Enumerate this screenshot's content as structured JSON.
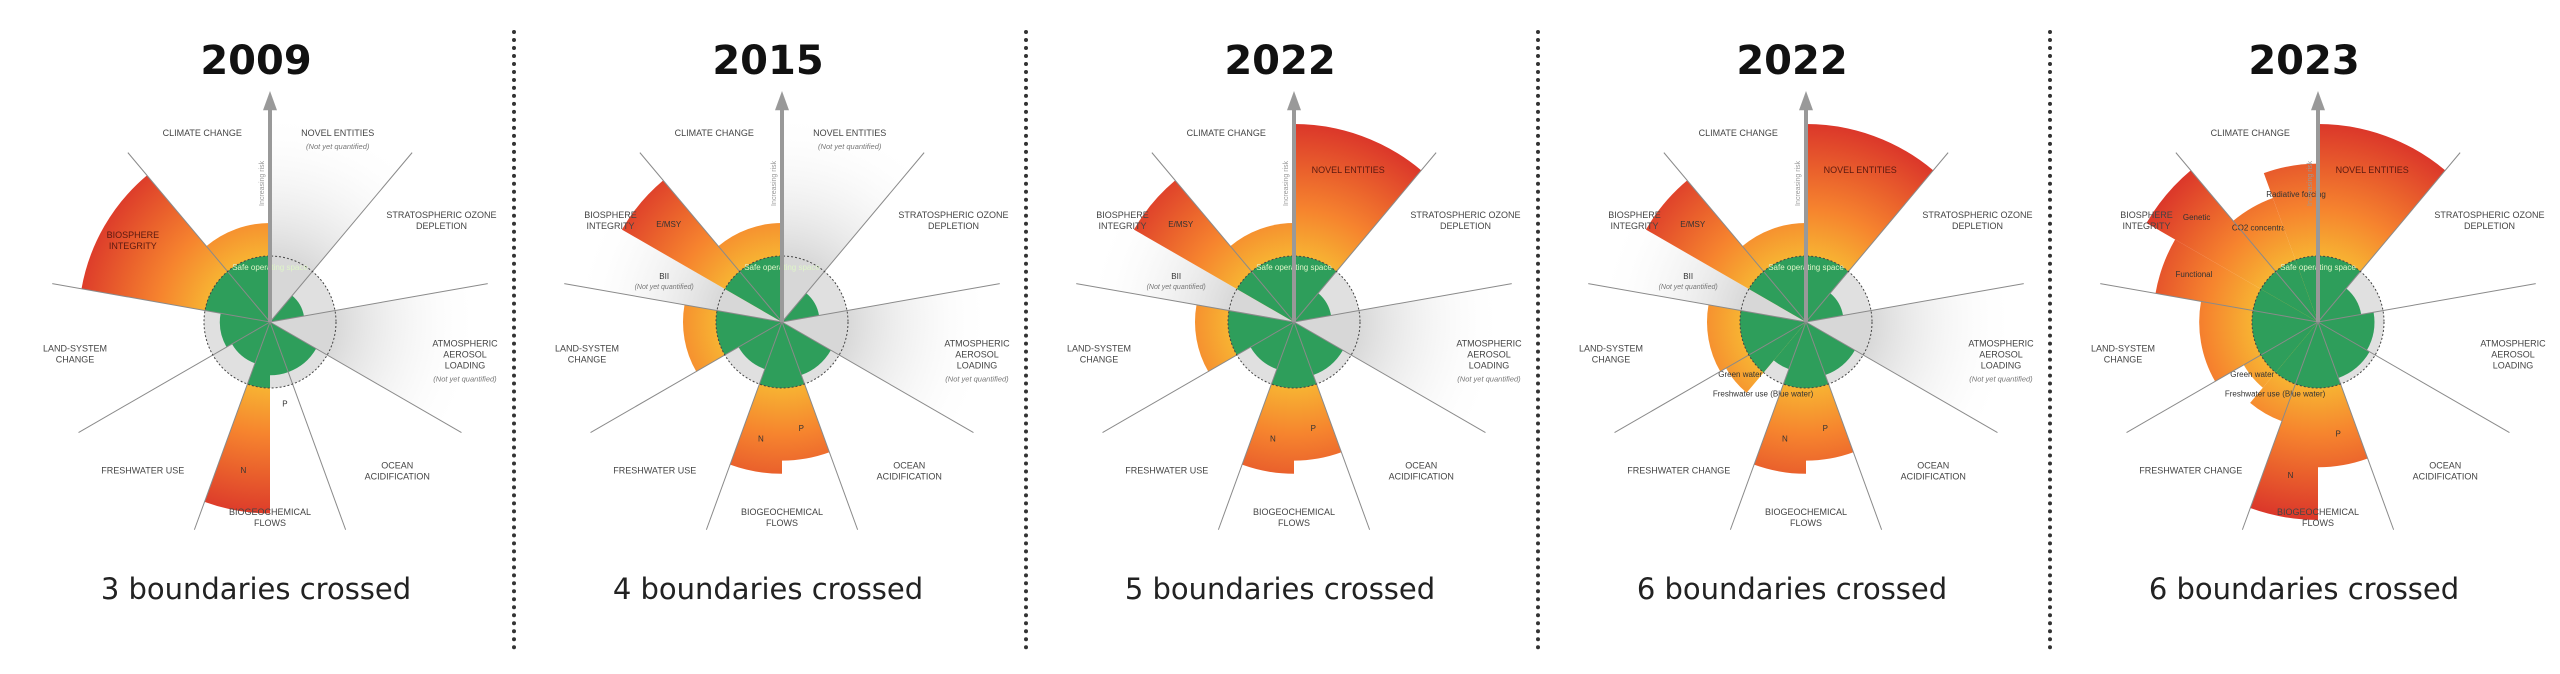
{
  "axis_label": "Increasing risk",
  "safe_space_label": "Safe operating space",
  "colors": {
    "safe": "#2e9e5b",
    "zone_low": "#f7b733",
    "zone_mid": "#f6842e",
    "zone_high": "#d9312a",
    "unquantified": "#d7d7d7"
  },
  "panels": [
    {
      "year": "2009",
      "caption": "3 boundaries crossed",
      "boundaries": [
        {
          "label": [
            "NOVEL ENTITIES"
          ],
          "note": "(Not yet quantified)",
          "segments": [
            {
              "label": "",
              "level": null
            }
          ]
        },
        {
          "label": [
            "STRATOSPHERIC OZONE",
            "DEPLETION"
          ],
          "note": "",
          "segments": [
            {
              "label": "",
              "level": 0.55
            }
          ]
        },
        {
          "label": [
            "ATMOSPHERIC",
            "AEROSOL",
            "LOADING"
          ],
          "note": "(Not yet quantified)",
          "segments": [
            {
              "label": "",
              "level": null
            }
          ]
        },
        {
          "label": [
            "OCEAN",
            "ACIDIFICATION"
          ],
          "note": "",
          "segments": [
            {
              "label": "",
              "level": 0.85
            }
          ]
        },
        {
          "label": [
            "BIOGEOCHEMICAL",
            "FLOWS"
          ],
          "note": "",
          "segments": [
            {
              "label": "P",
              "level": 0.85
            },
            {
              "label": "N",
              "level": 2.9
            }
          ]
        },
        {
          "label": [
            "FRESHWATER USE"
          ],
          "note": "",
          "segments": [
            {
              "label": "",
              "level": 0.7
            }
          ]
        },
        {
          "label": [
            "LAND-SYSTEM",
            "CHANGE"
          ],
          "note": "",
          "segments": [
            {
              "label": "",
              "level": 0.8
            }
          ]
        },
        {
          "label": [
            "BIOSPHERE",
            "INTEGRITY"
          ],
          "note": "",
          "inner_label": true,
          "segments": [
            {
              "label": "",
              "level": 2.9
            }
          ]
        },
        {
          "label": [
            "CLIMATE CHANGE"
          ],
          "note": "",
          "segments": [
            {
              "label": "",
              "level": 1.5
            }
          ]
        }
      ]
    },
    {
      "year": "2015",
      "caption": "4 boundaries crossed",
      "boundaries": [
        {
          "label": [
            "NOVEL ENTITIES"
          ],
          "note": "(Not yet quantified)",
          "segments": [
            {
              "label": "",
              "level": null
            }
          ]
        },
        {
          "label": [
            "STRATOSPHERIC OZONE",
            "DEPLETION"
          ],
          "note": "",
          "segments": [
            {
              "label": "",
              "level": 0.6
            }
          ]
        },
        {
          "label": [
            "ATMOSPHERIC",
            "AEROSOL",
            "LOADING"
          ],
          "note": "(Not yet quantified)",
          "segments": [
            {
              "label": "",
              "level": null
            }
          ]
        },
        {
          "label": [
            "OCEAN",
            "ACIDIFICATION"
          ],
          "note": "",
          "segments": [
            {
              "label": "",
              "level": 0.9
            }
          ]
        },
        {
          "label": [
            "BIOGEOCHEMICAL",
            "FLOWS"
          ],
          "note": "",
          "segments": [
            {
              "label": "P",
              "level": 2.1
            },
            {
              "label": "N",
              "level": 2.3
            }
          ]
        },
        {
          "label": [
            "FRESHWATER USE"
          ],
          "note": "",
          "segments": [
            {
              "label": "",
              "level": 0.8
            }
          ]
        },
        {
          "label": [
            "LAND-SYSTEM",
            "CHANGE"
          ],
          "note": "",
          "segments": [
            {
              "label": "",
              "level": 1.5
            }
          ]
        },
        {
          "label": [
            "BIOSPHERE",
            "INTEGRITY"
          ],
          "note": "",
          "segments": [
            {
              "label": "BII",
              "note": "(Not yet quantified)",
              "level": null
            },
            {
              "label": "E/MSY",
              "level": 2.8
            }
          ]
        },
        {
          "label": [
            "CLIMATE CHANGE"
          ],
          "note": "",
          "segments": [
            {
              "label": "",
              "level": 1.5
            }
          ]
        }
      ]
    },
    {
      "year": "2022",
      "caption": "5 boundaries crossed",
      "boundaries": [
        {
          "label": [
            "NOVEL ENTITIES"
          ],
          "note": "",
          "inner_label": true,
          "segments": [
            {
              "label": "",
              "level": 3.0
            }
          ]
        },
        {
          "label": [
            "STRATOSPHERIC OZONE",
            "DEPLETION"
          ],
          "note": "",
          "segments": [
            {
              "label": "",
              "level": 0.6
            }
          ]
        },
        {
          "label": [
            "ATMOSPHERIC",
            "AEROSOL",
            "LOADING"
          ],
          "note": "(Not yet quantified)",
          "segments": [
            {
              "label": "",
              "level": null
            }
          ]
        },
        {
          "label": [
            "OCEAN",
            "ACIDIFICATION"
          ],
          "note": "",
          "segments": [
            {
              "label": "",
              "level": 0.9
            }
          ]
        },
        {
          "label": [
            "BIOGEOCHEMICAL",
            "FLOWS"
          ],
          "note": "",
          "segments": [
            {
              "label": "P",
              "level": 2.1
            },
            {
              "label": "N",
              "level": 2.3
            }
          ]
        },
        {
          "label": [
            "FRESHWATER USE"
          ],
          "note": "",
          "segments": [
            {
              "label": "",
              "level": 0.8
            }
          ]
        },
        {
          "label": [
            "LAND-SYSTEM",
            "CHANGE"
          ],
          "note": "",
          "segments": [
            {
              "label": "",
              "level": 1.5
            }
          ]
        },
        {
          "label": [
            "BIOSPHERE",
            "INTEGRITY"
          ],
          "note": "",
          "segments": [
            {
              "label": "BII",
              "note": "(Not yet quantified)",
              "level": null
            },
            {
              "label": "E/MSY",
              "level": 2.8
            }
          ]
        },
        {
          "label": [
            "CLIMATE CHANGE"
          ],
          "note": "",
          "segments": [
            {
              "label": "",
              "level": 1.5
            }
          ]
        }
      ]
    },
    {
      "year": "2022",
      "caption": "6 boundaries crossed",
      "boundaries": [
        {
          "label": [
            "NOVEL ENTITIES"
          ],
          "note": "",
          "inner_label": true,
          "segments": [
            {
              "label": "",
              "level": 3.0
            }
          ]
        },
        {
          "label": [
            "STRATOSPHERIC OZONE",
            "DEPLETION"
          ],
          "note": "",
          "segments": [
            {
              "label": "",
              "level": 0.6
            }
          ]
        },
        {
          "label": [
            "ATMOSPHERIC",
            "AEROSOL",
            "LOADING"
          ],
          "note": "(Not yet quantified)",
          "segments": [
            {
              "label": "",
              "level": null
            }
          ]
        },
        {
          "label": [
            "OCEAN",
            "ACIDIFICATION"
          ],
          "note": "",
          "segments": [
            {
              "label": "",
              "level": 0.9
            }
          ]
        },
        {
          "label": [
            "BIOGEOCHEMICAL",
            "FLOWS"
          ],
          "note": "",
          "segments": [
            {
              "label": "P",
              "level": 2.1
            },
            {
              "label": "N",
              "level": 2.3
            }
          ]
        },
        {
          "label": [
            "FRESHWATER CHANGE"
          ],
          "note": "",
          "segments": [
            {
              "label": "Freshwater use (Blue water)",
              "level": 0.8
            },
            {
              "label": "Green water",
              "level": 1.4
            }
          ]
        },
        {
          "label": [
            "LAND-SYSTEM",
            "CHANGE"
          ],
          "note": "",
          "segments": [
            {
              "label": "",
              "level": 1.5
            }
          ]
        },
        {
          "label": [
            "BIOSPHERE",
            "INTEGRITY"
          ],
          "note": "",
          "segments": [
            {
              "label": "BII",
              "note": "(Not yet quantified)",
              "level": null
            },
            {
              "label": "E/MSY",
              "level": 2.8
            }
          ]
        },
        {
          "label": [
            "CLIMATE CHANGE"
          ],
          "note": "",
          "segments": [
            {
              "label": "",
              "level": 1.5
            }
          ]
        }
      ]
    },
    {
      "year": "2023",
      "caption": "6 boundaries crossed",
      "boundaries": [
        {
          "label": [
            "NOVEL ENTITIES"
          ],
          "note": "",
          "inner_label": true,
          "segments": [
            {
              "label": "",
              "level": 3.0
            }
          ]
        },
        {
          "label": [
            "STRATOSPHERIC OZONE",
            "DEPLETION"
          ],
          "note": "",
          "segments": [
            {
              "label": "",
              "level": 0.7
            }
          ]
        },
        {
          "label": [
            "ATMOSPHERIC",
            "AEROSOL",
            "LOADING"
          ],
          "note": "",
          "segments": [
            {
              "label": "",
              "level": 0.9
            }
          ]
        },
        {
          "label": [
            "OCEAN",
            "ACIDIFICATION"
          ],
          "note": "",
          "segments": [
            {
              "label": "",
              "level": 0.95
            }
          ]
        },
        {
          "label": [
            "BIOGEOCHEMICAL",
            "FLOWS"
          ],
          "note": "",
          "segments": [
            {
              "label": "P",
              "level": 2.2
            },
            {
              "label": "N",
              "level": 3.0
            }
          ]
        },
        {
          "label": [
            "FRESHWATER CHANGE"
          ],
          "note": "",
          "segments": [
            {
              "label": "Freshwater use (Blue water)",
              "level": 1.6
            },
            {
              "label": "Green water",
              "level": 1.3
            }
          ]
        },
        {
          "label": [
            "LAND-SYSTEM",
            "CHANGE"
          ],
          "note": "",
          "segments": [
            {
              "label": "",
              "level": 1.8
            }
          ]
        },
        {
          "label": [
            "BIOSPHERE",
            "INTEGRITY"
          ],
          "note": "",
          "segments": [
            {
              "label": "Functional",
              "level": 2.5
            },
            {
              "label": "Genetic",
              "level": 3.0
            }
          ]
        },
        {
          "label": [
            "CLIMATE CHANGE"
          ],
          "note": "",
          "segments": [
            {
              "label": "CO2 concentration",
              "level": 2.0
            },
            {
              "label": "Radiative forcing",
              "level": 2.4
            }
          ]
        }
      ]
    }
  ]
}
